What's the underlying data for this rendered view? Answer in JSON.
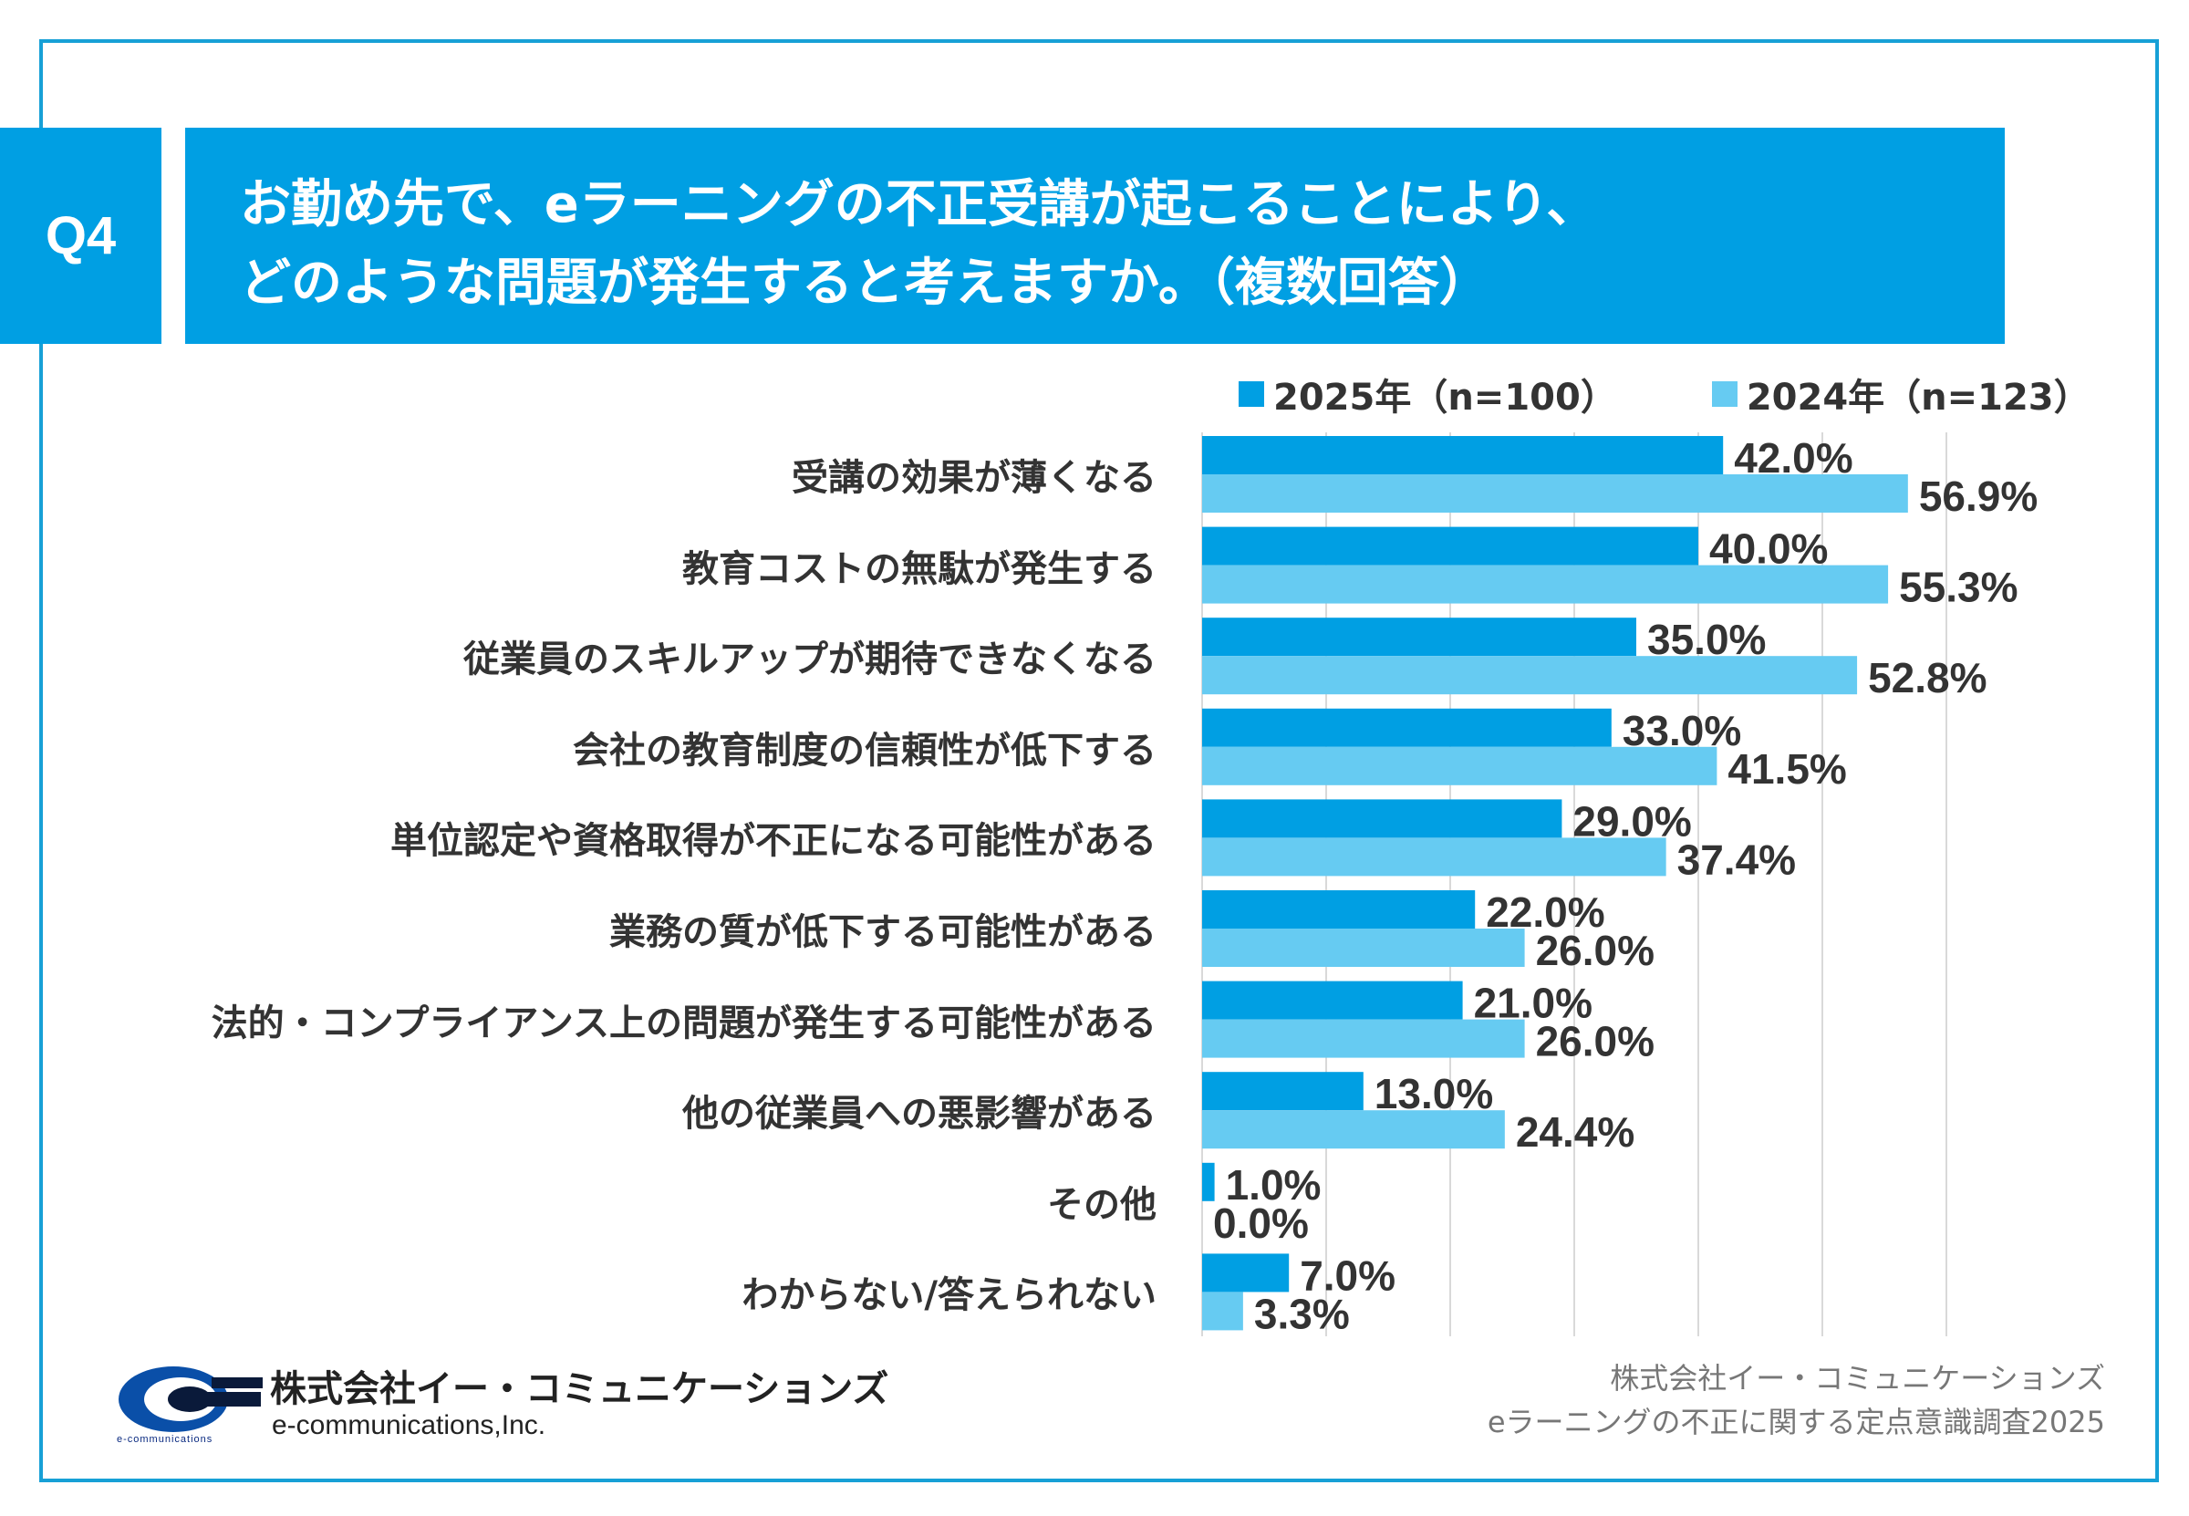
{
  "question": {
    "badge": "Q4",
    "title_line1": "お勤め先で、eラーニングの不正受講が起こることにより、",
    "title_line2": "どのような問題が発生すると考えますか。（複数回答）"
  },
  "colors": {
    "frame": "#17a0d6",
    "header": "#009fe3",
    "series_2025": "#009fe3",
    "series_2024": "#66cbf2",
    "grid": "#d9d9d9"
  },
  "chart_data": {
    "type": "bar",
    "orientation": "horizontal",
    "categories": [
      "受講の効果が薄くなる",
      "教育コストの無駄が発生する",
      "従業員のスキルアップが期待できなくなる",
      "会社の教育制度の信頼性が低下する",
      "単位認定や資格取得が不正になる可能性がある",
      "業務の質が低下する可能性がある",
      "法的・コンプライアンス上の問題が発生する可能性がある",
      "他の従業員への悪影響がある",
      "その他",
      "わからない/答えられない"
    ],
    "series": [
      {
        "name": "2025年（n=100）",
        "values": [
          42.0,
          40.0,
          35.0,
          33.0,
          29.0,
          22.0,
          21.0,
          13.0,
          1.0,
          7.0
        ],
        "labels": [
          "42.0%",
          "40.0%",
          "35.0%",
          "33.0%",
          "29.0%",
          "22.0%",
          "21.0%",
          "13.0%",
          "1.0%",
          "7.0%"
        ]
      },
      {
        "name": "2024年（n=123）",
        "values": [
          56.9,
          55.3,
          52.8,
          41.5,
          37.4,
          26.0,
          26.0,
          24.4,
          0.0,
          3.3
        ],
        "labels": [
          "56.9%",
          "55.3%",
          "52.8%",
          "41.5%",
          "37.4%",
          "26.0%",
          "26.0%",
          "24.4%",
          "0.0%",
          "3.3%"
        ]
      }
    ],
    "xlim": [
      0,
      70
    ],
    "gridlines": [
      0,
      10,
      20,
      30,
      40,
      50,
      60
    ],
    "legend_position": "top-right",
    "grid": true
  },
  "footer": {
    "company_name": "株式会社イー・コミュニケーションズ",
    "company_en": "e-communications,Inc.",
    "logo_small": "e-communications",
    "source_line1": "株式会社イー・コミュニケーションズ",
    "source_line2": "eラーニングの不正に関する定点意識調査2025"
  }
}
